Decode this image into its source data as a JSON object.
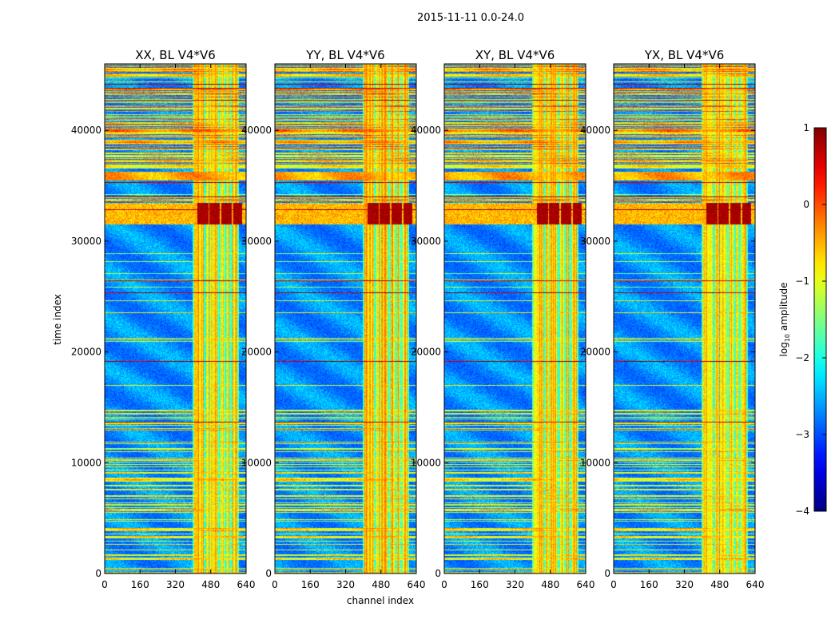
{
  "chart_data": {
    "type": "heatmap",
    "title": "2015-11-11 0.0-24.0",
    "xlabel": "channel index",
    "ylabel": "time index",
    "xlim": [
      0,
      640
    ],
    "ylim": [
      0,
      46000
    ],
    "x_ticks": [
      0,
      160,
      320,
      480,
      640
    ],
    "y_ticks": [
      0,
      10000,
      20000,
      30000,
      40000
    ],
    "y_tick_labels": [
      "0",
      "10000",
      "20000",
      "30000",
      "40000"
    ],
    "panels": [
      {
        "title": "XX, BL V4*V6",
        "polarization": "XX"
      },
      {
        "title": "YY, BL V4*V6",
        "polarization": "YY"
      },
      {
        "title": "XY, BL V4*V6",
        "polarization": "XY"
      },
      {
        "title": "YX, BL V4*V6",
        "polarization": "YX"
      }
    ],
    "colorbar": {
      "label": "log10 amplitude",
      "label_main": "log",
      "label_sub": "10",
      "label_rest": " amplitude",
      "range": [
        -4,
        1
      ],
      "ticks": [
        1,
        0,
        -1,
        -2,
        -3,
        -4
      ],
      "tick_labels": [
        "1",
        "0",
        "−1",
        "−2",
        "−3",
        "−4"
      ],
      "colormap": "jet"
    },
    "features": {
      "rfi_channel_bands": [
        [
          405,
          450
        ],
        [
          460,
          475
        ],
        [
          480,
          510
        ],
        [
          525,
          545
        ],
        [
          555,
          565
        ],
        [
          580,
          600
        ]
      ],
      "strong_burst_time_range": [
        31500,
        33500
      ],
      "strong_burst_channels": [
        [
          420,
          470
        ],
        [
          475,
          520
        ],
        [
          530,
          575
        ],
        [
          585,
          625
        ]
      ],
      "flagged_time_ranges": [
        [
          35500,
          36300
        ],
        [
          33600,
          33800
        ]
      ],
      "quiet_time_range_start": 0,
      "dense_time_range_start": 36300
    }
  },
  "colors": {
    "background": "#ffffff",
    "axis": "#000000"
  }
}
